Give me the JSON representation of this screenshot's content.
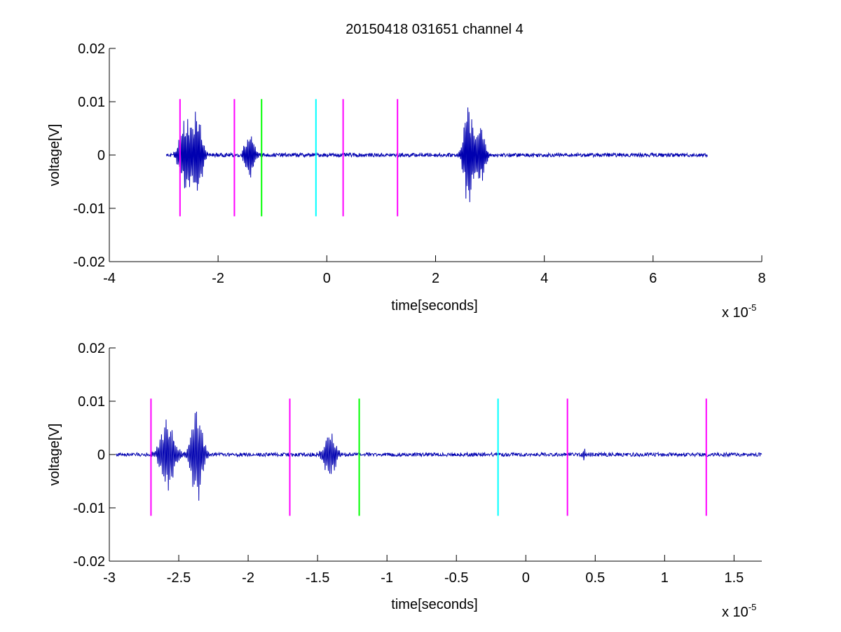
{
  "figure": {
    "title": "20150418 031651 channel 4"
  },
  "colors": {
    "signal": "#0000b0",
    "magenta": "#ff00ff",
    "green": "#00ff00",
    "cyan": "#00ffff",
    "axis": "#000000"
  },
  "chart_data": [
    {
      "type": "line",
      "title": "20150418 031651 channel 4",
      "xlabel": "time[seconds]",
      "ylabel": "voltage[V]",
      "x_exponent_label": "x 10",
      "x_exponent": "-5",
      "xlim": [
        -4e-05,
        8e-05
      ],
      "ylim": [
        -0.02,
        0.02
      ],
      "x_ticks": [
        -4,
        -2,
        0,
        2,
        4,
        6,
        8
      ],
      "x_tick_labels": [
        "-4",
        "-2",
        "0",
        "2",
        "4",
        "6",
        "8"
      ],
      "y_ticks": [
        -0.02,
        -0.01,
        0,
        0.01,
        0.02
      ],
      "y_tick_labels": [
        "-0.02",
        "-0.01",
        "0",
        "0.01",
        "0.02"
      ],
      "grid": false,
      "series": [
        {
          "color_key": "signal",
          "x_range": [
            -2.95e-05,
            7e-05
          ],
          "noise_amplitude": 0.0005,
          "bursts": [
            {
              "center": -2.6e-05,
              "width": 1.3e-06,
              "amplitude": 0.0075
            },
            {
              "center": -2.38e-05,
              "width": 1e-06,
              "amplitude": 0.0095
            },
            {
              "center": -1.42e-05,
              "width": 1e-06,
              "amplitude": 0.005
            },
            {
              "center": 2.6e-05,
              "width": 1e-06,
              "amplitude": 0.0105
            },
            {
              "center": 2.82e-05,
              "width": 1e-06,
              "amplitude": 0.007
            }
          ]
        }
      ],
      "markers": [
        {
          "x": -2.7e-05,
          "color_key": "magenta",
          "y_range": [
            -0.0115,
            0.0105
          ]
        },
        {
          "x": -1.7e-05,
          "color_key": "magenta",
          "y_range": [
            -0.0115,
            0.0105
          ]
        },
        {
          "x": -1.2e-05,
          "color_key": "green",
          "y_range": [
            -0.0115,
            0.0105
          ]
        },
        {
          "x": -2e-06,
          "color_key": "cyan",
          "y_range": [
            -0.0115,
            0.0105
          ]
        },
        {
          "x": 3e-06,
          "color_key": "magenta",
          "y_range": [
            -0.0115,
            0.0105
          ]
        },
        {
          "x": 1.3e-05,
          "color_key": "magenta",
          "y_range": [
            -0.0115,
            0.0105
          ]
        }
      ]
    },
    {
      "type": "line",
      "title": "",
      "xlabel": "time[seconds]",
      "ylabel": "voltage[V]",
      "x_exponent_label": "x 10",
      "x_exponent": "-5",
      "xlim": [
        -3e-05,
        1.7e-05
      ],
      "ylim": [
        -0.02,
        0.02
      ],
      "x_ticks": [
        -3,
        -2.5,
        -2,
        -1.5,
        -1,
        -0.5,
        0,
        0.5,
        1,
        1.5
      ],
      "x_tick_labels": [
        "-3",
        "-2.5",
        "-2",
        "-1.5",
        "-1",
        "-0.5",
        "0",
        "0.5",
        "1",
        "1.5"
      ],
      "y_ticks": [
        -0.02,
        -0.01,
        0,
        0.01,
        0.02
      ],
      "y_tick_labels": [
        "-0.02",
        "-0.01",
        "0",
        "0.01",
        "0.02"
      ],
      "grid": false,
      "series": [
        {
          "color_key": "signal",
          "x_range": [
            -2.95e-05,
            1.7e-05
          ],
          "noise_amplitude": 0.0005,
          "bursts": [
            {
              "center": -2.58e-05,
              "width": 6e-07,
              "amplitude": 0.0075
            },
            {
              "center": -2.37e-05,
              "width": 5e-07,
              "amplitude": 0.0095
            },
            {
              "center": -1.41e-05,
              "width": 5e-07,
              "amplitude": 0.005
            },
            {
              "center": 4.2e-06,
              "width": 1e-07,
              "amplitude": 0.0015
            }
          ]
        }
      ],
      "markers": [
        {
          "x": -2.7e-05,
          "color_key": "magenta",
          "y_range": [
            -0.0115,
            0.0105
          ]
        },
        {
          "x": -1.7e-05,
          "color_key": "magenta",
          "y_range": [
            -0.0115,
            0.0105
          ]
        },
        {
          "x": -1.2e-05,
          "color_key": "green",
          "y_range": [
            -0.0115,
            0.0105
          ]
        },
        {
          "x": -2e-06,
          "color_key": "cyan",
          "y_range": [
            -0.0115,
            0.0105
          ]
        },
        {
          "x": 3e-06,
          "color_key": "magenta",
          "y_range": [
            -0.0115,
            0.0105
          ]
        },
        {
          "x": 1.3e-05,
          "color_key": "magenta",
          "y_range": [
            -0.0115,
            0.0105
          ]
        }
      ]
    }
  ]
}
